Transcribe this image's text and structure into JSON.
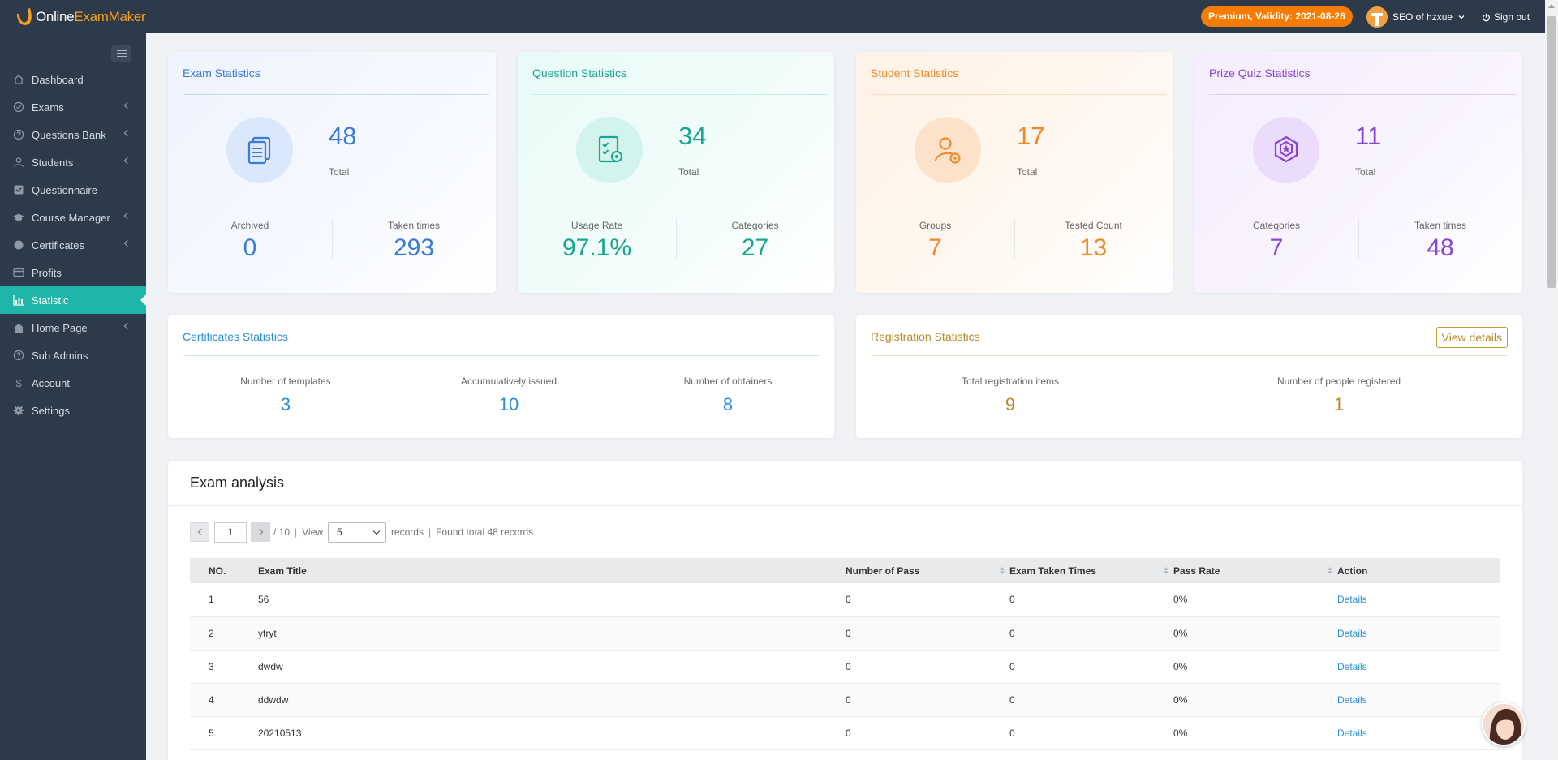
{
  "brand": {
    "prefix": "Online",
    "suffix": "ExamMaker"
  },
  "header": {
    "premium_badge": "Premium, Validity: 2021-08-26",
    "user_name": "SEO of hzxue",
    "sign_out": "Sign out"
  },
  "sidebar": {
    "items": [
      {
        "label": "Dashboard",
        "icon": "home-icon"
      },
      {
        "label": "Exams",
        "icon": "check-circle-icon"
      },
      {
        "label": "Questions Bank",
        "icon": "question-circle-icon"
      },
      {
        "label": "Students",
        "icon": "user-icon"
      },
      {
        "label": "Questionnaire",
        "icon": "checkbox-icon"
      },
      {
        "label": "Course Manager",
        "icon": "graduation-cap-icon"
      },
      {
        "label": "Certificates",
        "icon": "badge-icon"
      },
      {
        "label": "Profits",
        "icon": "card-icon"
      },
      {
        "label": "Statistic",
        "icon": "bar-chart-icon"
      },
      {
        "label": "Home Page",
        "icon": "home-page-icon"
      },
      {
        "label": "Sub Admins",
        "icon": "question-circle-icon"
      },
      {
        "label": "Account",
        "icon": "dollar-icon"
      },
      {
        "label": "Settings",
        "icon": "gear-icon"
      }
    ],
    "active": "Statistic"
  },
  "stats": {
    "exam": {
      "title": "Exam Statistics",
      "total": "48",
      "total_label": "Total",
      "left_label": "Archived",
      "left_value": "0",
      "right_label": "Taken times",
      "right_value": "293",
      "color": "#3a7bd5"
    },
    "question": {
      "title": "Question Statistics",
      "total": "34",
      "total_label": "Total",
      "left_label": "Usage Rate",
      "left_value": "97.1%",
      "right_label": "Categories",
      "right_value": "27",
      "color": "#19a58f"
    },
    "student": {
      "title": "Student Statistics",
      "total": "17",
      "total_label": "Total",
      "left_label": "Groups",
      "left_value": "7",
      "right_label": "Tested Count",
      "right_value": "13",
      "color": "#f08a28"
    },
    "prize": {
      "title": "Prize Quiz Statistics",
      "total": "11",
      "total_label": "Total",
      "left_label": "Categories",
      "left_value": "7",
      "right_label": "Taken times",
      "right_value": "48",
      "color": "#8a45d0"
    }
  },
  "certificates": {
    "title": "Certificates Statistics",
    "cols": [
      {
        "label": "Number of templates",
        "value": "3"
      },
      {
        "label": "Accumulatively issued",
        "value": "10"
      },
      {
        "label": "Number of obtainers",
        "value": "8"
      }
    ]
  },
  "registration": {
    "title": "Registration Statistics",
    "view_details": "View details",
    "cols": [
      {
        "label": "Total registration items",
        "value": "9"
      },
      {
        "label": "Number of people registered",
        "value": "1"
      }
    ]
  },
  "analysis": {
    "title": "Exam analysis",
    "pager": {
      "page": "1",
      "of": "/ 10",
      "view": "View",
      "per_page": "5",
      "records": "records",
      "found": "Found total 48 records"
    },
    "columns": [
      "NO.",
      "Exam Title",
      "Number of Pass",
      "Exam Taken Times",
      "Pass Rate",
      "Action"
    ],
    "rows": [
      {
        "no": "1",
        "title": "56",
        "pass": "0",
        "taken": "0",
        "rate": "0%",
        "action": "Details"
      },
      {
        "no": "2",
        "title": "ytryt",
        "pass": "0",
        "taken": "0",
        "rate": "0%",
        "action": "Details"
      },
      {
        "no": "3",
        "title": "dwdw",
        "pass": "0",
        "taken": "0",
        "rate": "0%",
        "action": "Details"
      },
      {
        "no": "4",
        "title": "ddwdw",
        "pass": "0",
        "taken": "0",
        "rate": "0%",
        "action": "Details"
      },
      {
        "no": "5",
        "title": "20210513",
        "pass": "0",
        "taken": "0",
        "rate": "0%",
        "action": "Details"
      }
    ]
  }
}
